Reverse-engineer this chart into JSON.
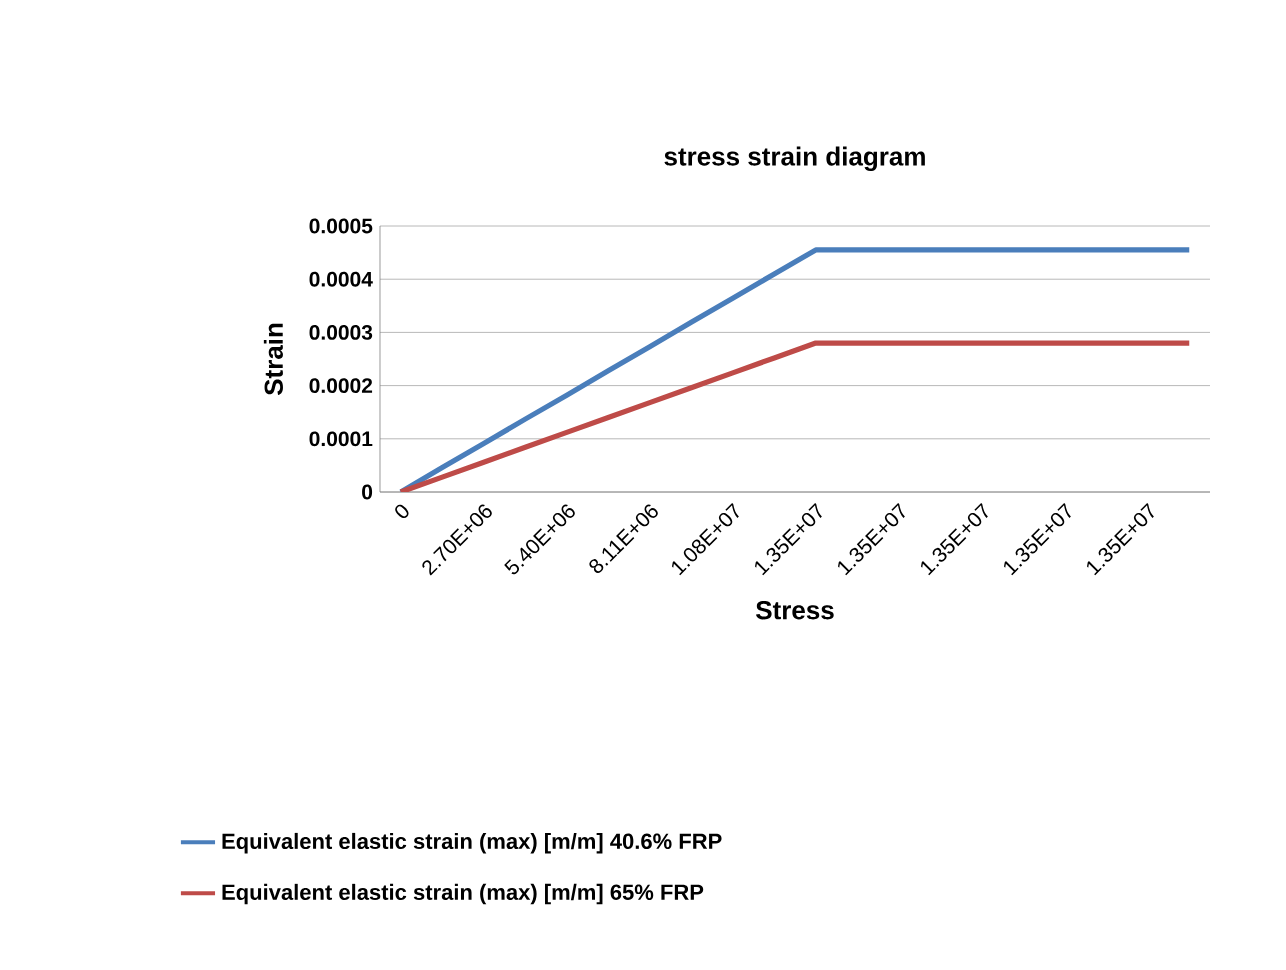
{
  "chart_data": {
    "type": "line",
    "title": "stress strain diagram",
    "xlabel": "Stress",
    "ylabel": "Strain",
    "categories": [
      "0",
      null,
      "2.70E+06",
      null,
      "5.40E+06",
      null,
      "8.11E+06",
      null,
      "1.08E+07",
      null,
      "1.35E+07",
      null,
      "1.35E+07",
      null,
      "1.35E+07",
      null,
      "1.35E+07",
      null,
      "1.35E+07",
      null
    ],
    "series": [
      {
        "name": "Equivalent elastic strain (max) [m/m] 40.6% FRP",
        "color": "#4a7ebb",
        "values": [
          0,
          4.6e-05,
          9.1e-05,
          0.000137,
          0.000182,
          0.000228,
          0.000273,
          0.000319,
          0.000364,
          0.00041,
          0.000455,
          0.000455,
          0.000455,
          0.000455,
          0.000455,
          0.000455,
          0.000455,
          0.000455,
          0.000455,
          0.000455
        ]
      },
      {
        "name": "Equivalent elastic strain (max) [m/m] 65% FRP",
        "color": "#be4b48",
        "values": [
          0,
          2.8e-05,
          5.6e-05,
          8.4e-05,
          0.000112,
          0.00014,
          0.000168,
          0.000196,
          0.000224,
          0.000252,
          0.00028,
          0.00028,
          0.00028,
          0.00028,
          0.00028,
          0.00028,
          0.00028,
          0.00028,
          0.00028,
          0.00028
        ]
      }
    ],
    "ylim": [
      0,
      0.0005
    ],
    "yticks": [
      0,
      0.0001,
      0.0002,
      0.0003,
      0.0004,
      0.0005
    ],
    "grid": "y",
    "legend": "bottom",
    "marker": "none",
    "line_style": "solid"
  }
}
